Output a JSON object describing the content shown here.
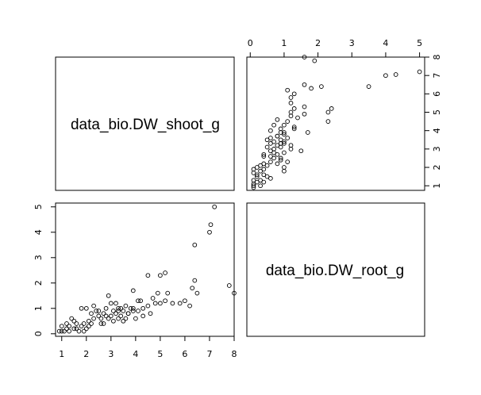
{
  "chart_data": {
    "type": "scatter",
    "title": "",
    "grid": false,
    "variables": [
      "data_bio.DW_shoot_g",
      "data_bio.DW_root_g"
    ],
    "panels": {
      "upper_right": {
        "x_var": "data_bio.DW_root_g",
        "y_var": "data_bio.DW_shoot_g"
      },
      "lower_left": {
        "x_var": "data_bio.DW_shoot_g",
        "y_var": "data_bio.DW_root_g"
      }
    },
    "axes": {
      "shoot": {
        "ticks": [
          "1",
          "2",
          "3",
          "4",
          "5",
          "6",
          "7",
          "8"
        ],
        "lim": [
          0.75,
          8.0
        ]
      },
      "root": {
        "ticks": [
          "0",
          "1",
          "2",
          "3",
          "4",
          "5"
        ],
        "lim": [
          -0.1,
          5.15
        ]
      }
    },
    "points": [
      {
        "shoot": 0.9,
        "root": 0.1
      },
      {
        "shoot": 1.0,
        "root": 0.1
      },
      {
        "shoot": 1.1,
        "root": 0.1
      },
      {
        "shoot": 1.2,
        "root": 0.2
      },
      {
        "shoot": 1.3,
        "root": 0.1
      },
      {
        "shoot": 1.4,
        "root": 0.6
      },
      {
        "shoot": 1.5,
        "root": 0.2
      },
      {
        "shoot": 1.6,
        "root": 0.4
      },
      {
        "shoot": 1.7,
        "root": 0.1
      },
      {
        "shoot": 1.8,
        "root": 0.3
      },
      {
        "shoot": 1.9,
        "root": 0.4
      },
      {
        "shoot": 1.0,
        "root": 0.3
      },
      {
        "shoot": 1.2,
        "root": 0.4
      },
      {
        "shoot": 1.5,
        "root": 0.5
      },
      {
        "shoot": 1.8,
        "root": 1.0
      },
      {
        "shoot": 2.0,
        "root": 1.0
      },
      {
        "shoot": 2.1,
        "root": 0.5
      },
      {
        "shoot": 2.2,
        "root": 0.8
      },
      {
        "shoot": 2.3,
        "root": 1.1
      },
      {
        "shoot": 2.4,
        "root": 0.9
      },
      {
        "shoot": 2.5,
        "root": 0.7
      },
      {
        "shoot": 2.6,
        "root": 0.6
      },
      {
        "shoot": 2.7,
        "root": 0.8
      },
      {
        "shoot": 2.8,
        "root": 1.0
      },
      {
        "shoot": 2.9,
        "root": 1.5
      },
      {
        "shoot": 3.0,
        "root": 1.2
      },
      {
        "shoot": 3.1,
        "root": 0.9
      },
      {
        "shoot": 3.2,
        "root": 0.8
      },
      {
        "shoot": 3.3,
        "root": 1.0
      },
      {
        "shoot": 3.4,
        "root": 0.7
      },
      {
        "shoot": 3.5,
        "root": 0.9
      },
      {
        "shoot": 3.6,
        "root": 1.1
      },
      {
        "shoot": 3.7,
        "root": 0.8
      },
      {
        "shoot": 3.8,
        "root": 1.0
      },
      {
        "shoot": 3.9,
        "root": 1.7
      },
      {
        "shoot": 4.1,
        "root": 0.9
      },
      {
        "shoot": 4.2,
        "root": 1.3
      },
      {
        "shoot": 4.3,
        "root": 0.7
      },
      {
        "shoot": 4.5,
        "root": 1.1
      },
      {
        "shoot": 4.5,
        "root": 2.3
      },
      {
        "shoot": 4.7,
        "root": 1.4
      },
      {
        "shoot": 4.9,
        "root": 1.6
      },
      {
        "shoot": 5.0,
        "root": 1.2
      },
      {
        "shoot": 5.0,
        "root": 2.3
      },
      {
        "shoot": 5.2,
        "root": 2.4
      },
      {
        "shoot": 5.3,
        "root": 1.6
      },
      {
        "shoot": 5.5,
        "root": 1.2
      },
      {
        "shoot": 5.8,
        "root": 1.2
      },
      {
        "shoot": 6.0,
        "root": 1.3
      },
      {
        "shoot": 6.2,
        "root": 1.1
      },
      {
        "shoot": 6.3,
        "root": 1.8
      },
      {
        "shoot": 6.4,
        "root": 2.1
      },
      {
        "shoot": 6.5,
        "root": 1.6
      },
      {
        "shoot": 6.4,
        "root": 3.5
      },
      {
        "shoot": 7.0,
        "root": 4.0
      },
      {
        "shoot": 7.05,
        "root": 4.3
      },
      {
        "shoot": 7.2,
        "root": 5.0
      },
      {
        "shoot": 7.8,
        "root": 1.9
      },
      {
        "shoot": 8.0,
        "root": 1.6
      },
      {
        "shoot": 1.3,
        "root": 0.3
      },
      {
        "shoot": 1.6,
        "root": 0.2
      },
      {
        "shoot": 2.0,
        "root": 0.2
      },
      {
        "shoot": 2.2,
        "root": 0.4
      },
      {
        "shoot": 2.5,
        "root": 0.9
      },
      {
        "shoot": 2.7,
        "root": 0.4
      },
      {
        "shoot": 2.9,
        "root": 0.6
      },
      {
        "shoot": 3.1,
        "root": 0.5
      },
      {
        "shoot": 3.3,
        "root": 0.6
      },
      {
        "shoot": 3.5,
        "root": 0.5
      },
      {
        "shoot": 3.6,
        "root": 0.6
      },
      {
        "shoot": 3.9,
        "root": 0.9
      },
      {
        "shoot": 4.0,
        "root": 0.6
      },
      {
        "shoot": 4.3,
        "root": 1.0
      },
      {
        "shoot": 4.6,
        "root": 0.8
      },
      {
        "shoot": 3.2,
        "root": 1.2
      },
      {
        "shoot": 3.4,
        "root": 1.0
      },
      {
        "shoot": 2.3,
        "root": 0.6
      },
      {
        "shoot": 1.9,
        "root": 0.1
      },
      {
        "shoot": 4.1,
        "root": 1.3
      },
      {
        "shoot": 3.0,
        "root": 0.7
      },
      {
        "shoot": 2.6,
        "root": 0.4
      },
      {
        "shoot": 2.1,
        "root": 0.3
      },
      {
        "shoot": 3.7,
        "root": 0.8
      },
      {
        "shoot": 4.8,
        "root": 1.2
      },
      {
        "shoot": 5.2,
        "root": 1.3
      },
      {
        "shoot": 2.8,
        "root": 0.7
      },
      {
        "shoot": 3.3,
        "root": 0.9
      },
      {
        "shoot": 3.9,
        "root": 1.0
      }
    ]
  }
}
